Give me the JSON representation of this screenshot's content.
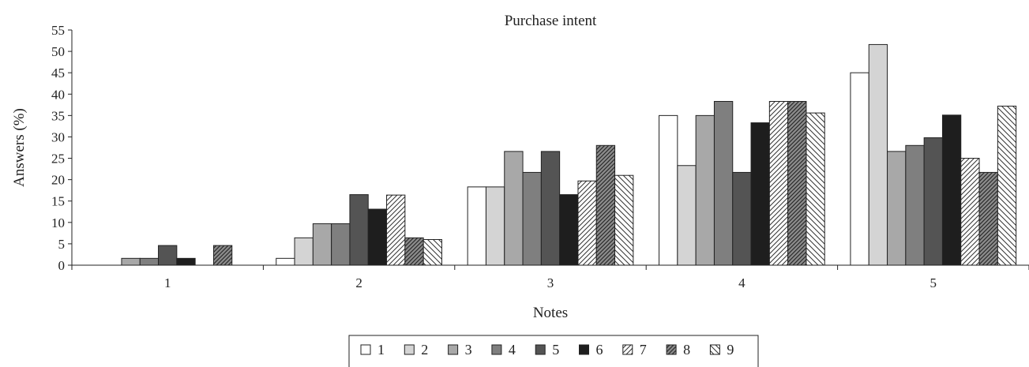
{
  "chart_data": {
    "type": "bar",
    "title": "Purchase intent",
    "xlabel": "Notes",
    "ylabel": "Answers (%)",
    "ylim": [
      0,
      55
    ],
    "yticks": [
      0,
      5,
      10,
      15,
      20,
      25,
      30,
      35,
      40,
      45,
      50,
      55
    ],
    "categories": [
      "1",
      "2",
      "3",
      "4",
      "5"
    ],
    "grid": false,
    "legend_position": "bottom",
    "series": [
      {
        "name": "1",
        "pattern": "white",
        "values": [
          0,
          1.6,
          18.3,
          35.0,
          45.0
        ]
      },
      {
        "name": "2",
        "pattern": "lightgray",
        "values": [
          0,
          6.4,
          18.3,
          23.3,
          51.6
        ]
      },
      {
        "name": "3",
        "pattern": "gray",
        "values": [
          1.6,
          9.7,
          26.6,
          35.0,
          26.6
        ]
      },
      {
        "name": "4",
        "pattern": "midgray",
        "values": [
          1.6,
          9.7,
          21.7,
          38.3,
          28.0
        ]
      },
      {
        "name": "5",
        "pattern": "darkgray",
        "values": [
          4.6,
          16.5,
          26.6,
          21.7,
          29.8
        ]
      },
      {
        "name": "6",
        "pattern": "black",
        "values": [
          1.6,
          13.1,
          16.5,
          33.3,
          35.1
        ]
      },
      {
        "name": "7",
        "pattern": "hatch-light",
        "values": [
          0,
          16.4,
          19.7,
          38.3,
          25.0
        ]
      },
      {
        "name": "8",
        "pattern": "hatch-gray",
        "values": [
          4.6,
          6.4,
          28.0,
          38.3,
          21.7
        ]
      },
      {
        "name": "9",
        "pattern": "hatch-white",
        "values": [
          0,
          6.0,
          21.0,
          35.6,
          37.2
        ]
      }
    ]
  }
}
